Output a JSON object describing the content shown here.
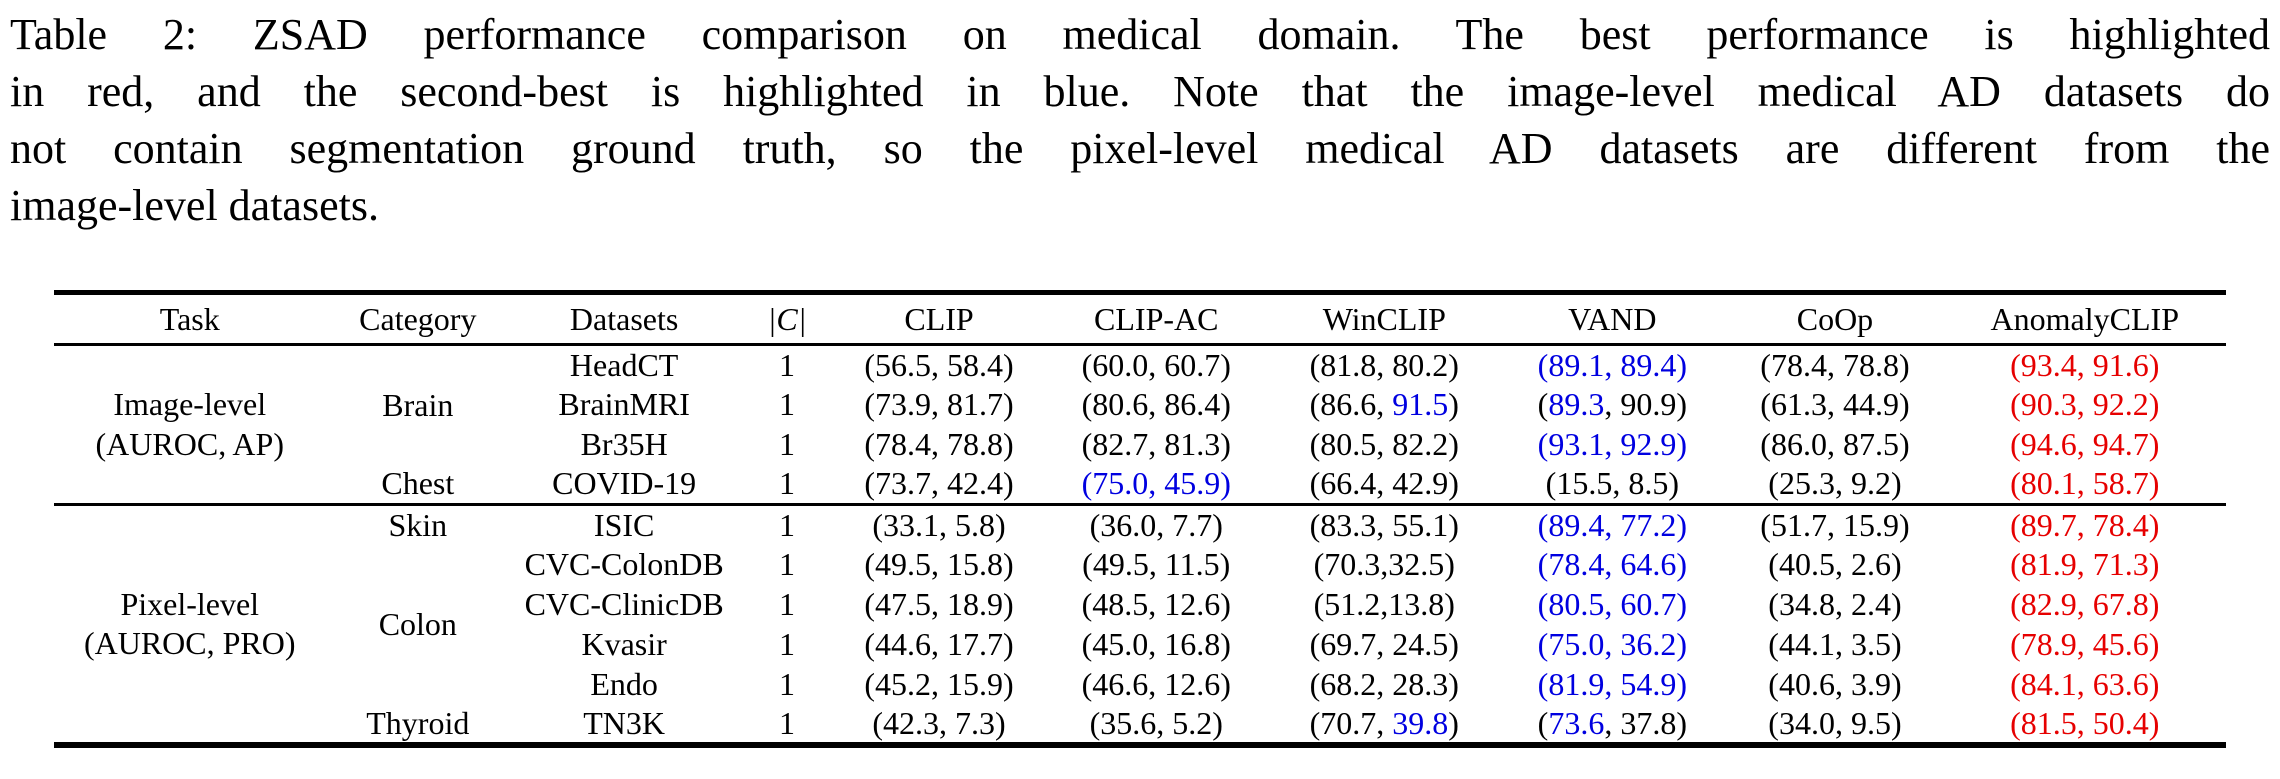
{
  "caption": {
    "lines": [
      "Table 2: ZSAD performance comparison on medical domain. The best performance is highlighted",
      "in red, and the second-best is highlighted in blue. Note that the image-level medical AD datasets do",
      "not contain segmentation ground truth, so the pixel-level medical AD datasets are different from the",
      "image-level datasets."
    ]
  },
  "colors": {
    "best_red": "#e60000",
    "second_blue": "#0000e0",
    "text": "#000000",
    "background": "#ffffff"
  },
  "legend": {
    "red_means": "best performance",
    "blue_means": "second-best performance"
  },
  "table": {
    "columns": [
      "Task",
      "Category",
      "Datasets",
      "|C|",
      "CLIP",
      "CLIP-AC",
      "WinCLIP",
      "VAND",
      "CoOp",
      "AnomalyCLIP"
    ],
    "color_codes": {
      "k": "black",
      "b": "second-best blue",
      "r": "best red"
    },
    "sections": [
      {
        "task_lines": [
          "Image-level",
          "(AUROC, AP)"
        ],
        "groups": [
          {
            "category": "Brain",
            "rows": [
              {
                "dataset": "HeadCT",
                "c": "1",
                "cells": [
                  [
                    "56.5",
                    "58.4",
                    "k",
                    "k"
                  ],
                  [
                    "60.0",
                    "60.7",
                    "k",
                    "k"
                  ],
                  [
                    "81.8",
                    "80.2",
                    "k",
                    "k"
                  ],
                  [
                    "89.1",
                    "89.4",
                    "b",
                    "b"
                  ],
                  [
                    "78.4",
                    "78.8",
                    "k",
                    "k"
                  ],
                  [
                    "93.4",
                    "91.6",
                    "r",
                    "r"
                  ]
                ]
              },
              {
                "dataset": "BrainMRI",
                "c": "1",
                "cells": [
                  [
                    "73.9",
                    "81.7",
                    "k",
                    "k"
                  ],
                  [
                    "80.6",
                    "86.4",
                    "k",
                    "k"
                  ],
                  [
                    "86.6",
                    "91.5",
                    "k",
                    "b"
                  ],
                  [
                    "89.3",
                    "90.9",
                    "b",
                    "k"
                  ],
                  [
                    "61.3",
                    "44.9",
                    "k",
                    "k"
                  ],
                  [
                    "90.3",
                    "92.2",
                    "r",
                    "r"
                  ]
                ]
              },
              {
                "dataset": "Br35H",
                "c": "1",
                "cells": [
                  [
                    "78.4",
                    "78.8",
                    "k",
                    "k"
                  ],
                  [
                    "82.7",
                    "81.3",
                    "k",
                    "k"
                  ],
                  [
                    "80.5",
                    "82.2",
                    "k",
                    "k"
                  ],
                  [
                    "93.1",
                    "92.9",
                    "b",
                    "b"
                  ],
                  [
                    "86.0",
                    "87.5",
                    "k",
                    "k"
                  ],
                  [
                    "94.6",
                    "94.7",
                    "r",
                    "r"
                  ]
                ]
              }
            ]
          },
          {
            "category": "Chest",
            "rows": [
              {
                "dataset": "COVID-19",
                "c": "1",
                "cells": [
                  [
                    "73.7",
                    "42.4",
                    "k",
                    "k"
                  ],
                  [
                    "75.0",
                    "45.9",
                    "b",
                    "b"
                  ],
                  [
                    "66.4",
                    "42.9",
                    "k",
                    "k"
                  ],
                  [
                    "15.5",
                    "8.5",
                    "k",
                    "k"
                  ],
                  [
                    "25.3",
                    "9.2",
                    "k",
                    "k"
                  ],
                  [
                    "80.1",
                    "58.7",
                    "r",
                    "r"
                  ]
                ]
              }
            ]
          }
        ]
      },
      {
        "task_lines": [
          "Pixel-level",
          "(AUROC, PRO)"
        ],
        "groups": [
          {
            "category": "Skin",
            "rows": [
              {
                "dataset": "ISIC",
                "c": "1",
                "cells": [
                  [
                    "33.1",
                    "5.8",
                    "k",
                    "k"
                  ],
                  [
                    "36.0",
                    "7.7",
                    "k",
                    "k"
                  ],
                  [
                    "83.3",
                    "55.1",
                    "k",
                    "k"
                  ],
                  [
                    "89.4",
                    "77.2",
                    "b",
                    "b"
                  ],
                  [
                    "51.7",
                    "15.9",
                    "k",
                    "k"
                  ],
                  [
                    "89.7",
                    "78.4",
                    "r",
                    "r"
                  ]
                ]
              }
            ]
          },
          {
            "category": "Colon",
            "rows": [
              {
                "dataset": "CVC-ColonDB",
                "c": "1",
                "cells": [
                  [
                    "49.5",
                    "15.8",
                    "k",
                    "k"
                  ],
                  [
                    "49.5",
                    "11.5",
                    "k",
                    "k"
                  ],
                  [
                    "70.3",
                    "32.5",
                    "k",
                    "k",
                    true
                  ],
                  [
                    "78.4",
                    "64.6",
                    "b",
                    "b"
                  ],
                  [
                    "40.5",
                    "2.6",
                    "k",
                    "k"
                  ],
                  [
                    "81.9",
                    "71.3",
                    "r",
                    "r"
                  ]
                ]
              },
              {
                "dataset": "CVC-ClinicDB",
                "c": "1",
                "cells": [
                  [
                    "47.5",
                    "18.9",
                    "k",
                    "k"
                  ],
                  [
                    "48.5",
                    "12.6",
                    "k",
                    "k"
                  ],
                  [
                    "51.2",
                    "13.8",
                    "k",
                    "k",
                    true
                  ],
                  [
                    "80.5",
                    "60.7",
                    "b",
                    "b"
                  ],
                  [
                    "34.8",
                    "2.4",
                    "k",
                    "k"
                  ],
                  [
                    "82.9",
                    "67.8",
                    "r",
                    "r"
                  ]
                ]
              },
              {
                "dataset": "Kvasir",
                "c": "1",
                "cells": [
                  [
                    "44.6",
                    "17.7",
                    "k",
                    "k"
                  ],
                  [
                    "45.0",
                    "16.8",
                    "k",
                    "k"
                  ],
                  [
                    "69.7",
                    "24.5",
                    "k",
                    "k"
                  ],
                  [
                    "75.0",
                    "36.2",
                    "b",
                    "b"
                  ],
                  [
                    "44.1",
                    "3.5",
                    "k",
                    "k"
                  ],
                  [
                    "78.9",
                    "45.6",
                    "r",
                    "r"
                  ]
                ]
              },
              {
                "dataset": "Endo",
                "c": "1",
                "cells": [
                  [
                    "45.2",
                    "15.9",
                    "k",
                    "k"
                  ],
                  [
                    "46.6",
                    "12.6",
                    "k",
                    "k"
                  ],
                  [
                    "68.2",
                    "28.3",
                    "k",
                    "k"
                  ],
                  [
                    "81.9",
                    "54.9",
                    "b",
                    "b"
                  ],
                  [
                    "40.6",
                    "3.9",
                    "k",
                    "k"
                  ],
                  [
                    "84.1",
                    "63.6",
                    "r",
                    "r"
                  ]
                ]
              }
            ]
          },
          {
            "category": "Thyroid",
            "rows": [
              {
                "dataset": "TN3K",
                "c": "1",
                "cells": [
                  [
                    "42.3",
                    "7.3",
                    "k",
                    "k"
                  ],
                  [
                    "35.6",
                    "5.2",
                    "k",
                    "k"
                  ],
                  [
                    "70.7",
                    "39.8",
                    "k",
                    "b"
                  ],
                  [
                    "73.6",
                    "37.8",
                    "b",
                    "k"
                  ],
                  [
                    "34.0",
                    "9.5",
                    "k",
                    "k"
                  ],
                  [
                    "81.5",
                    "50.4",
                    "r",
                    "r"
                  ]
                ]
              }
            ]
          }
        ]
      }
    ]
  }
}
